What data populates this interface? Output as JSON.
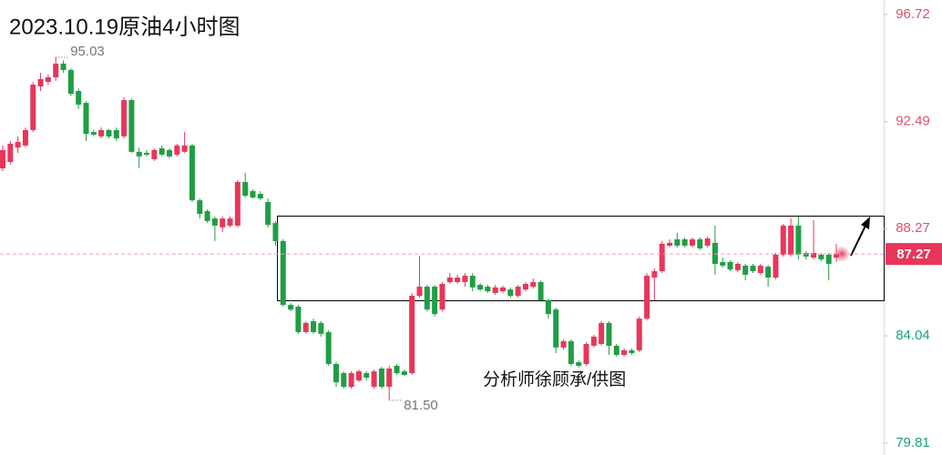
{
  "chart_data": {
    "type": "candlestick",
    "title": "2023.10.19原油4小时图",
    "watermark": "分析师徐顾承/供图",
    "up_color": "#e8365a",
    "down_color": "#1f9e45",
    "ylim": [
      79.34,
      97.29
    ],
    "yticks": [
      96.72,
      92.49,
      88.27,
      84.04,
      79.81
    ],
    "last_price": 87.27,
    "annotations": [
      {
        "value": 95.03,
        "label": "95.03"
      },
      {
        "value": 81.5,
        "label": "81.50"
      }
    ],
    "open": [
      90.65,
      90.9,
      91.47,
      91.55,
      92.16,
      93.88,
      94.06,
      94.24,
      94.78,
      94.53,
      93.7,
      93.23,
      92.08,
      91.91,
      92.16,
      92.16,
      91.91,
      93.34,
      91.3,
      91.26,
      91.01,
      91.44,
      91.37,
      91.19,
      91.3,
      91.55,
      89.39,
      88.96,
      88.67,
      88.32,
      88.39,
      88.39,
      90.11,
      89.75,
      89.64,
      89.32,
      88.49,
      87.78,
      85.26,
      85.19,
      84.19,
      84.62,
      84.55,
      84.19,
      82.93,
      82.57,
      82.03,
      82.28,
      82.57,
      82.03,
      82.75,
      82.03,
      82.86,
      82.64,
      82.57,
      85.62,
      85.98,
      85.98,
      85.08,
      86.16,
      86.16,
      86.16,
      86.41,
      86.05,
      85.98,
      85.73,
      85.8,
      85.87,
      85.62,
      85.87,
      85.98,
      86.16,
      85.44,
      85.08,
      83.58,
      83.83,
      83.0,
      82.93,
      83.65,
      83.72,
      84.55,
      83.65,
      83.29,
      83.47,
      83.47,
      84.72,
      86.34,
      86.59,
      87.6,
      87.85,
      87.85,
      87.6,
      87.85,
      87.6,
      87.71,
      86.95,
      86.95,
      86.63,
      86.81,
      86.81,
      86.52,
      86.77,
      86.34,
      87.24,
      87.24,
      88.39,
      87.31,
      87.13,
      87.24,
      87.24,
      87.13
    ],
    "high": [
      91.55,
      91.73,
      91.91,
      92.26,
      94.06,
      94.42,
      94.35,
      95.03,
      94.9,
      94.6,
      93.8,
      93.3,
      92.16,
      92.26,
      92.2,
      92.26,
      93.45,
      93.4,
      91.47,
      91.37,
      91.44,
      91.55,
      91.44,
      91.62,
      92.08,
      91.62,
      89.46,
      89.03,
      88.75,
      88.75,
      88.75,
      90.18,
      90.47,
      89.82,
      89.75,
      89.46,
      88.57,
      87.85,
      85.33,
      85.26,
      84.62,
      84.72,
      84.62,
      84.26,
      83.0,
      82.64,
      82.64,
      82.71,
      82.64,
      82.71,
      82.82,
      82.86,
      82.93,
      82.71,
      85.73,
      87.2,
      86.05,
      86.05,
      86.16,
      86.52,
      86.45,
      86.52,
      86.52,
      86.12,
      86.05,
      86.05,
      86.02,
      85.95,
      86.05,
      86.16,
      86.3,
      86.23,
      85.51,
      85.15,
      83.9,
      83.9,
      83.07,
      83.79,
      84.08,
      84.62,
      84.62,
      83.72,
      83.54,
      83.54,
      84.8,
      86.52,
      86.7,
      87.78,
      87.85,
      88.1,
      87.92,
      87.92,
      87.92,
      87.95,
      88.39,
      87.13,
      87.02,
      86.95,
      86.88,
      86.88,
      86.88,
      86.84,
      87.31,
      88.46,
      88.67,
      88.75,
      87.38,
      88.6,
      87.31,
      87.31,
      87.67
    ],
    "low": [
      90.54,
      90.8,
      91.26,
      91.47,
      92.08,
      93.7,
      93.95,
      94.1,
      94.42,
      93.5,
      93.0,
      91.73,
      91.91,
      91.83,
      91.83,
      91.73,
      91.83,
      91.26,
      90.65,
      91.12,
      90.94,
      91.12,
      91.05,
      91.12,
      91.26,
      89.32,
      88.67,
      88.49,
      87.78,
      88.14,
      88.32,
      88.32,
      89.5,
      89.46,
      89.39,
      88.32,
      87.6,
      85.19,
      85.01,
      84.12,
      84.12,
      84.12,
      84.01,
      82.86,
      82.03,
      81.96,
      81.96,
      82.21,
      82.28,
      81.96,
      81.96,
      81.5,
      82.5,
      82.46,
      82.5,
      85.55,
      85.01,
      84.8,
      85.01,
      86.09,
      86.09,
      85.98,
      85.8,
      85.8,
      85.73,
      85.66,
      85.73,
      85.55,
      85.55,
      85.8,
      85.91,
      85.37,
      84.72,
      83.36,
      83.5,
      82.86,
      82.79,
      82.86,
      83.58,
      83.65,
      83.29,
      83.22,
      83.22,
      83.29,
      83.4,
      84.65,
      85.44,
      86.52,
      87.53,
      87.53,
      87.53,
      87.53,
      87.42,
      87.53,
      86.45,
      86.73,
      86.59,
      86.55,
      86.23,
      86.52,
      86.45,
      85.98,
      86.27,
      87.17,
      87.17,
      87.06,
      87.06,
      87.06,
      86.99,
      86.23,
      86.95
    ],
    "close": [
      91.37,
      91.62,
      91.69,
      92.16,
      93.95,
      94.17,
      94.24,
      94.78,
      94.53,
      93.59,
      93.16,
      92.01,
      91.98,
      92.16,
      91.91,
      91.83,
      93.34,
      91.3,
      91.12,
      91.19,
      91.37,
      91.19,
      91.12,
      91.55,
      91.55,
      89.39,
      88.85,
      88.57,
      88.39,
      88.67,
      88.67,
      90.11,
      89.57,
      89.5,
      89.46,
      88.42,
      87.78,
      85.26,
      85.08,
      84.19,
      84.55,
      84.19,
      84.12,
      82.93,
      82.21,
      82.03,
      82.57,
      82.64,
      82.39,
      82.64,
      82.03,
      82.75,
      82.57,
      82.5,
      85.62,
      85.98,
      85.08,
      84.9,
      86.09,
      86.34,
      86.34,
      86.41,
      85.95,
      85.87,
      85.8,
      85.95,
      85.95,
      85.62,
      85.98,
      86.09,
      86.16,
      85.44,
      84.9,
      83.58,
      83.83,
      82.93,
      82.86,
      83.72,
      84.01,
      84.55,
      83.65,
      83.29,
      83.47,
      83.36,
      84.72,
      86.41,
      86.59,
      87.67,
      87.71,
      87.6,
      87.6,
      87.85,
      87.49,
      87.88,
      86.88,
      86.81,
      86.66,
      86.88,
      86.45,
      86.59,
      86.81,
      86.34,
      87.24,
      88.39,
      88.39,
      87.24,
      87.17,
      87.31,
      87.06,
      86.88,
      87.27
    ]
  }
}
